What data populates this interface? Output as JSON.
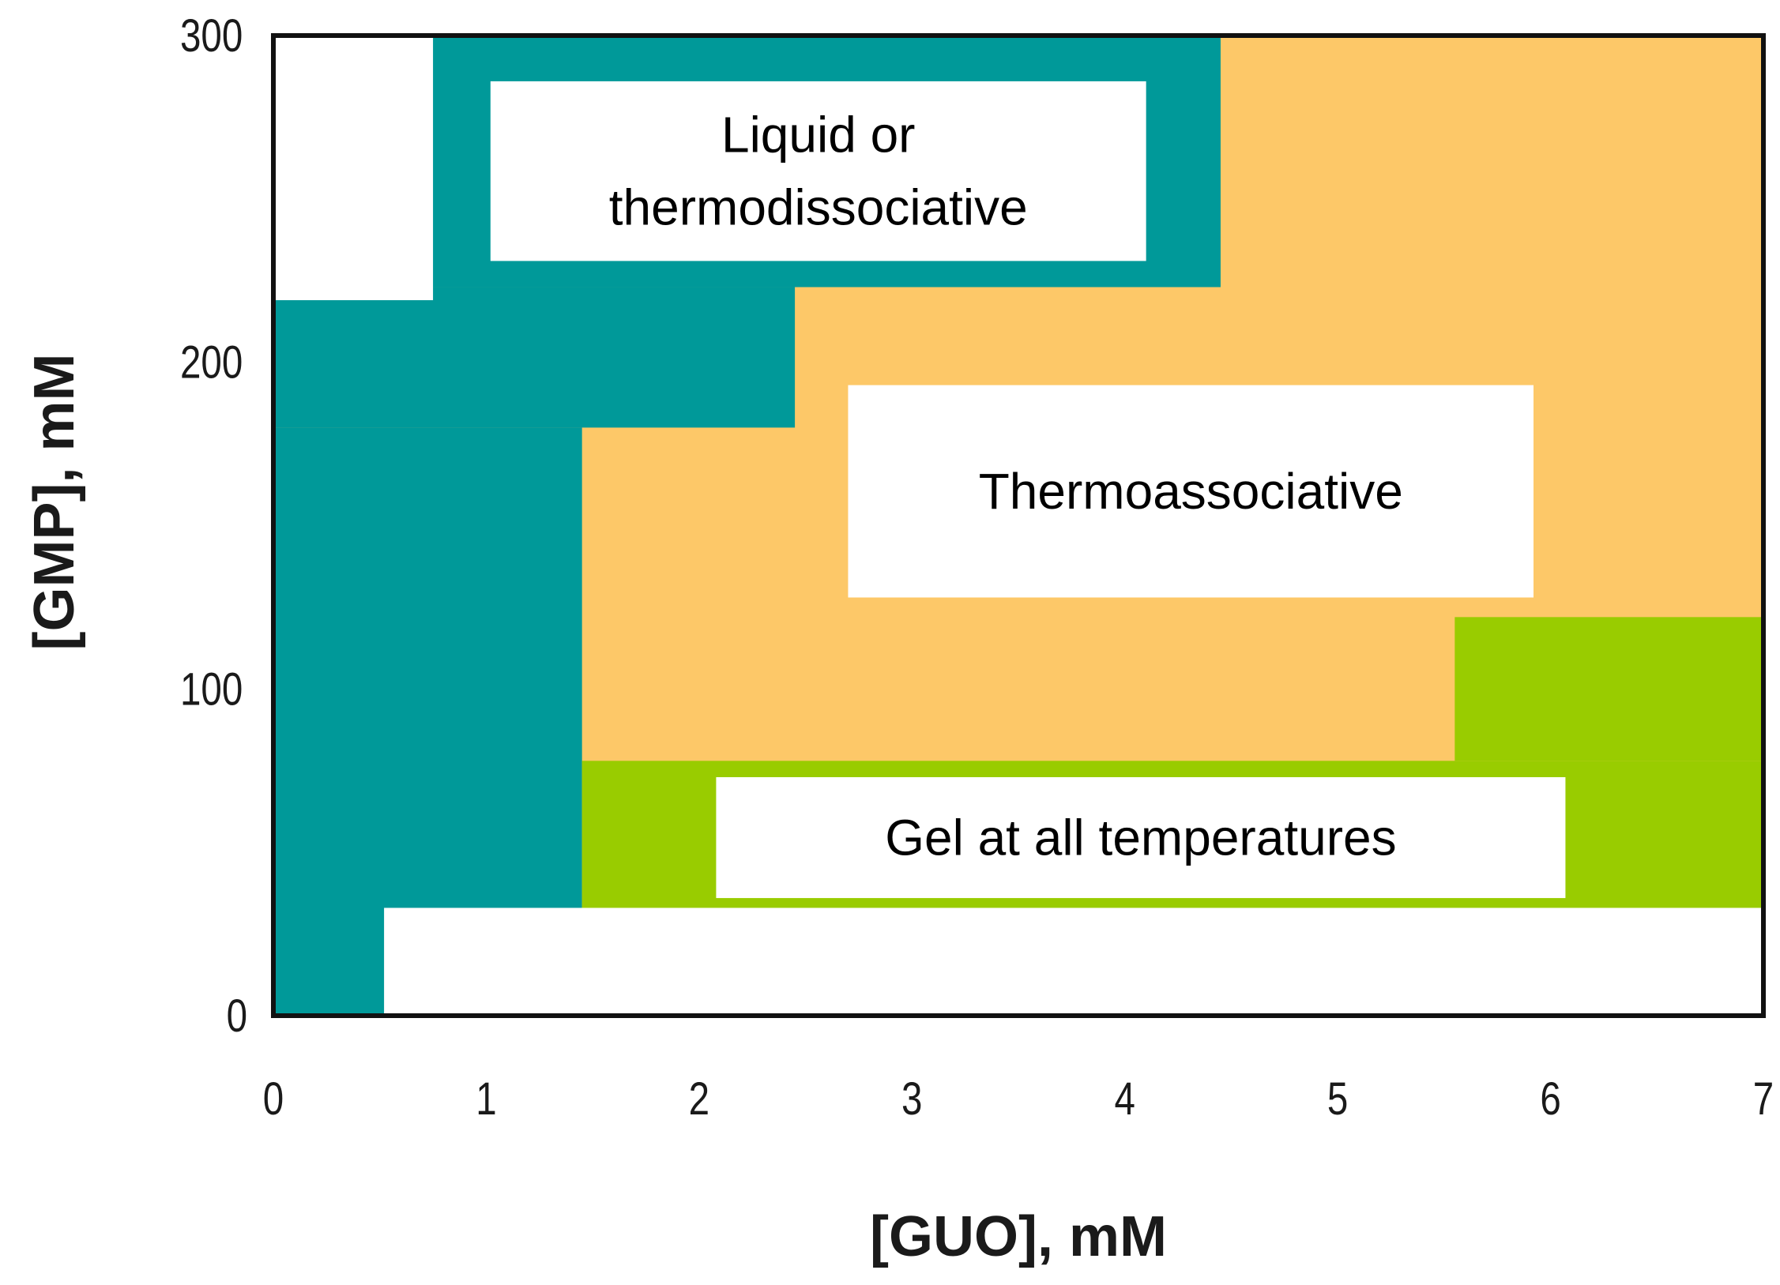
{
  "chart_data": {
    "type": "heatmap",
    "title": "",
    "xlabel": "[GUO], mM",
    "ylabel": "[GMP], mM",
    "xlim": [
      0,
      7
    ],
    "ylim": [
      0,
      300
    ],
    "xticks": [
      "0",
      "1",
      "2",
      "3",
      "4",
      "5",
      "6",
      "7"
    ],
    "yticks": [
      "0",
      "100",
      "200",
      "300"
    ],
    "grid": false,
    "legend": "none",
    "colors": {
      "liquid": "#009999",
      "thermoassociative": "#FDC868",
      "gel": "#99CC00",
      "none": "#FFFFFF"
    },
    "regions": [
      {
        "name": "thermoassociative",
        "x": [
          0,
          7
        ],
        "y": [
          0,
          300
        ]
      },
      {
        "name": "liquid",
        "x": [
          0,
          4.45
        ],
        "y": [
          223,
          300
        ]
      },
      {
        "name": "liquid",
        "x": [
          0,
          2.45
        ],
        "y": [
          180,
          223
        ]
      },
      {
        "name": "liquid",
        "x": [
          0,
          1.45
        ],
        "y": [
          0,
          180
        ]
      },
      {
        "name": "none",
        "x": [
          0,
          0.75
        ],
        "y": [
          219,
          300
        ]
      },
      {
        "name": "gel",
        "x": [
          1.45,
          7
        ],
        "y": [
          33,
          78
        ]
      },
      {
        "name": "gel",
        "x": [
          5.55,
          7
        ],
        "y": [
          78,
          122
        ]
      },
      {
        "name": "none",
        "x": [
          0.52,
          7
        ],
        "y": [
          0,
          33
        ]
      }
    ],
    "labels": [
      {
        "lines": [
          "Liquid or",
          "thermodissociative"
        ],
        "x": [
          1.02,
          4.1
        ],
        "y": [
          231,
          286
        ]
      },
      {
        "lines": [
          "Thermoassociative"
        ],
        "x": [
          2.7,
          5.92
        ],
        "y": [
          128,
          193
        ]
      },
      {
        "lines": [
          "Gel at all temperatures"
        ],
        "x": [
          2.08,
          6.07
        ],
        "y": [
          36,
          73
        ]
      }
    ]
  }
}
